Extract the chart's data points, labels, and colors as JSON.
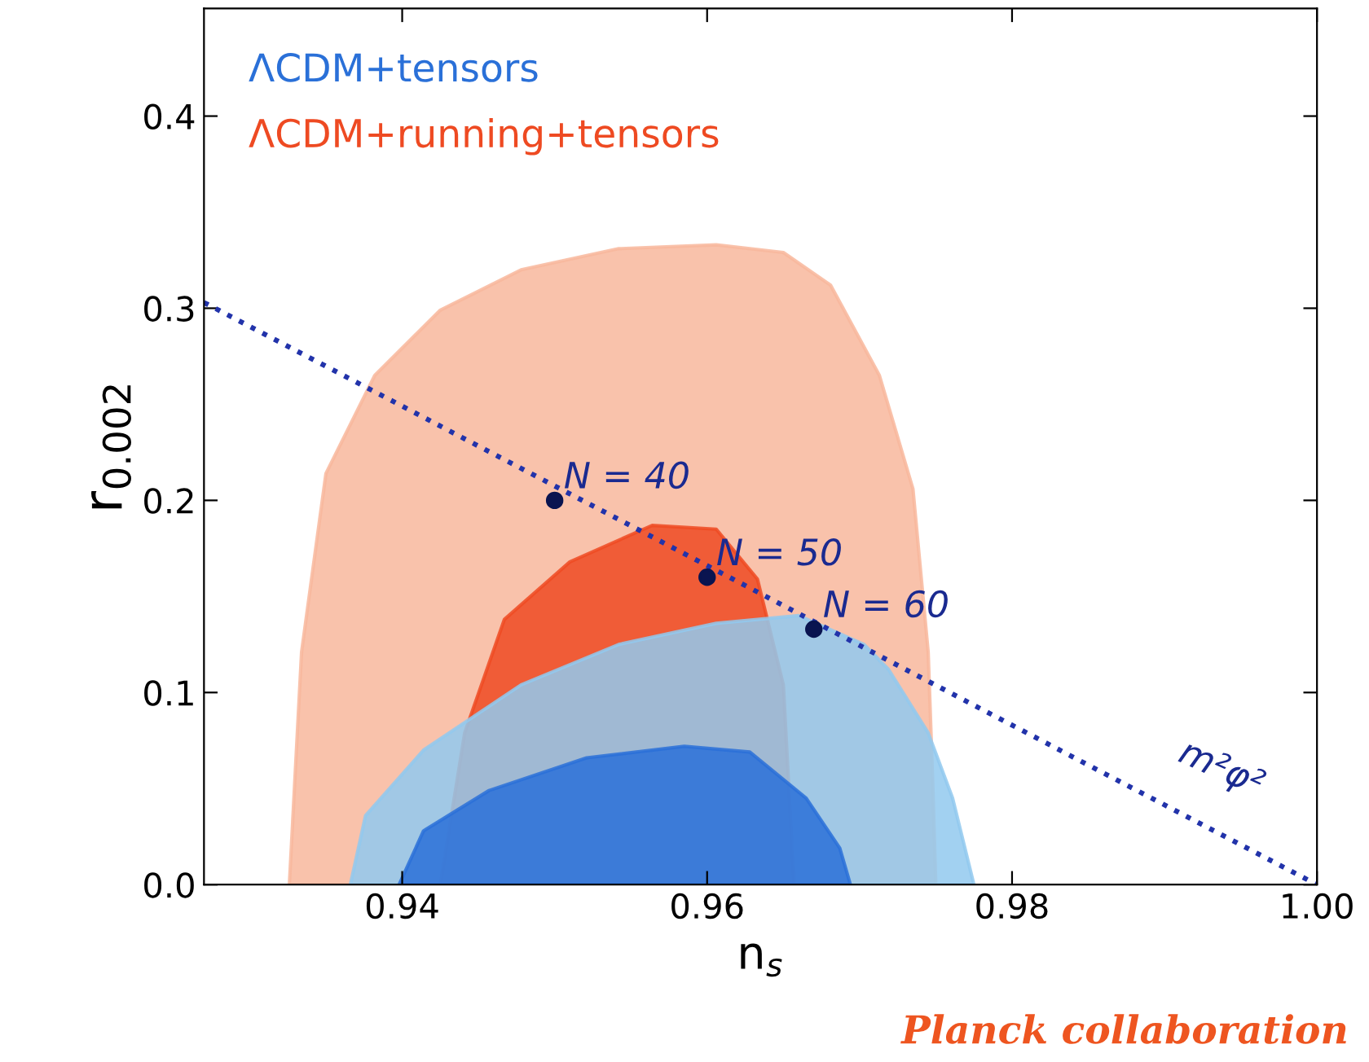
{
  "chart_data": {
    "type": "area",
    "xlabel": "n$_{s}$",
    "ylabel": "r$_{0.002}$",
    "xlim": [
      0.927,
      1.0
    ],
    "ylim": [
      0,
      0.456
    ],
    "xticks": [
      0.94,
      0.96,
      0.98,
      {
        "value": 1.0,
        "label": "1.00"
      }
    ],
    "yticks": [
      {
        "value": 0,
        "label": "0.0"
      },
      0.1,
      0.2,
      0.3,
      0.4
    ],
    "grid": false,
    "legend": "top left",
    "series": [
      {
        "color": "#f8b79c",
        "x": [
          0.9326,
          0.9334,
          0.935,
          0.9382,
          0.9425,
          0.9478,
          0.9542,
          0.9606,
          0.965,
          0.9681,
          0.9713,
          0.9735,
          0.9745,
          0.9748,
          0.975
        ],
        "values": [
          0,
          0.121,
          0.214,
          0.265,
          0.299,
          0.32,
          0.331,
          0.333,
          0.329,
          0.312,
          0.265,
          0.206,
          0.121,
          0.053,
          0
        ]
      },
      {
        "name": "ΛCDM+running+tensors",
        "color": "#ee4a22",
        "x": [
          0.9425,
          0.9441,
          0.9467,
          0.951,
          0.9564,
          0.9606,
          0.9633,
          0.965,
          0.9657
        ],
        "values": [
          0,
          0.079,
          0.138,
          0.168,
          0.187,
          0.185,
          0.159,
          0.104,
          0
        ]
      },
      {
        "color": "#92c9ee",
        "x": [
          0.9366,
          0.9376,
          0.9414,
          0.9478,
          0.9542,
          0.9606,
          0.966,
          0.9703,
          0.9719,
          0.9745,
          0.9761,
          0.9775
        ],
        "values": [
          0,
          0.036,
          0.07,
          0.104,
          0.125,
          0.136,
          0.14,
          0.125,
          0.112,
          0.079,
          0.045,
          0
        ]
      },
      {
        "name": "ΛCDM+tensors",
        "color": "#2a70d8",
        "x": [
          0.9398,
          0.9414,
          0.9457,
          0.9521,
          0.9585,
          0.9628,
          0.9665,
          0.9687,
          0.9694
        ],
        "values": [
          0,
          0.028,
          0.049,
          0.066,
          0.072,
          0.069,
          0.045,
          0.019,
          0
        ]
      },
      {
        "type": "line",
        "color": "#2233aa",
        "line_style": "dotted",
        "marker": "none",
        "x": [
          0.927,
          1.0
        ],
        "values": [
          0.303,
          0.0
        ]
      },
      {
        "type": "scatter",
        "color": "#0a1450",
        "marker": "circle",
        "x": [
          0.95,
          0.96,
          0.967
        ],
        "values": [
          0.2,
          0.16,
          0.133
        ]
      }
    ],
    "annotations": [
      {
        "text": "N = 40",
        "x": 0.95,
        "y": 0.2
      },
      {
        "text": "N = 50",
        "x": 0.96,
        "y": 0.16
      },
      {
        "text": "N = 60",
        "x": 0.967,
        "y": 0.133
      },
      {
        "text": "m²φ²",
        "x": 0.99,
        "y": 0.04
      },
      "Planck collaboration"
    ]
  }
}
